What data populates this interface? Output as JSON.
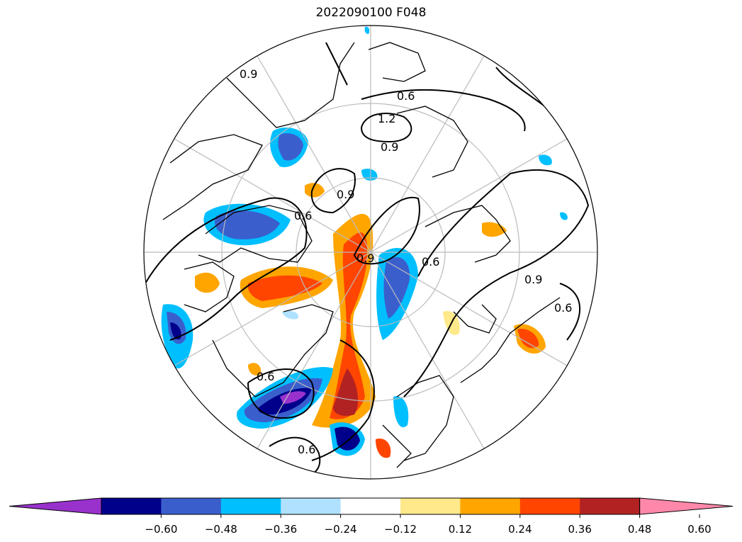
{
  "title": "2022090100 F048",
  "colorbar": {
    "colors": [
      "#9932cc",
      "#00008b",
      "#3a5fcd",
      "#00bfff",
      "#b0e2ff",
      "#ffffff",
      "#ffe98a",
      "#ffa500",
      "#ff4500",
      "#b22222",
      "#ff88aa"
    ],
    "tick_labels": [
      "−0.60",
      "−0.48",
      "−0.36",
      "−0.24",
      "−0.12",
      "0.12",
      "0.24",
      "0.36",
      "0.48",
      "0.60"
    ]
  },
  "contour_labels": [
    "0.6",
    "1.2",
    "0.9",
    "0.9",
    "0.6",
    "0.9",
    "0.6",
    "0.6",
    "0.9",
    "0.6",
    "0.9",
    "0.6"
  ]
}
